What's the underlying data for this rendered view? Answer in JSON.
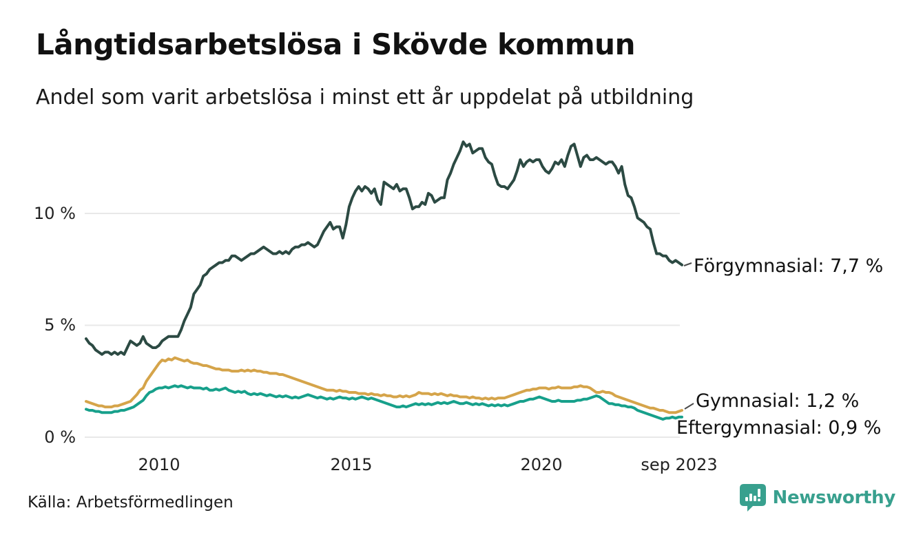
{
  "header": {
    "title": "Långtidsarbetslösa i Skövde kommun",
    "subtitle": "Andel som varit arbetslösa i minst ett år uppdelat på utbildning"
  },
  "footer": {
    "source": "Källa: Arbetsförmedlingen",
    "logo_text": "Newsworthy",
    "logo_color": "#38A08E"
  },
  "chart_data": {
    "type": "line",
    "title": "Långtidsarbetslösa i Skövde kommun",
    "subtitle": "Andel som varit arbetslösa i minst ett år uppdelat på utbildning",
    "unit": "%",
    "interval": "monthly",
    "x_start": "2008-01",
    "x_end": "2023-09",
    "point_count": 189,
    "grid": "horizontal",
    "ylim": [
      0,
      13.8
    ],
    "y_ticks": [
      {
        "value": 10,
        "label": "10 %"
      },
      {
        "value": 5,
        "label": "5 %"
      },
      {
        "value": 0,
        "label": "0 %"
      }
    ],
    "x_tick_labels": [
      "2010",
      "2015",
      "2020",
      "sep 2023"
    ],
    "x_tick_month_indices": [
      24,
      84,
      144,
      188
    ],
    "series": [
      {
        "name": "Förgymnasial",
        "end_label": "Förgymnasial: 7,7 %",
        "end_value": 7.7,
        "color": "#2C4A43",
        "values": [
          4.4,
          4.2,
          4.1,
          3.9,
          3.8,
          3.7,
          3.8,
          3.8,
          3.7,
          3.8,
          3.7,
          3.8,
          3.7,
          4.0,
          4.3,
          4.2,
          4.1,
          4.2,
          4.5,
          4.2,
          4.1,
          4.0,
          4.0,
          4.1,
          4.3,
          4.4,
          4.5,
          4.5,
          4.5,
          4.5,
          4.8,
          5.2,
          5.5,
          5.8,
          6.4,
          6.6,
          6.8,
          7.2,
          7.3,
          7.5,
          7.6,
          7.7,
          7.8,
          7.8,
          7.9,
          7.9,
          8.1,
          8.1,
          8.0,
          7.9,
          8.0,
          8.1,
          8.2,
          8.2,
          8.3,
          8.4,
          8.5,
          8.4,
          8.3,
          8.2,
          8.2,
          8.3,
          8.2,
          8.3,
          8.2,
          8.4,
          8.5,
          8.5,
          8.6,
          8.6,
          8.7,
          8.6,
          8.5,
          8.6,
          8.9,
          9.2,
          9.4,
          9.6,
          9.3,
          9.4,
          9.4,
          8.9,
          9.5,
          10.3,
          10.7,
          11.0,
          11.2,
          11.0,
          11.2,
          11.1,
          10.9,
          11.1,
          10.6,
          10.4,
          11.4,
          11.3,
          11.2,
          11.1,
          11.3,
          11.0,
          11.1,
          11.1,
          10.7,
          10.2,
          10.3,
          10.3,
          10.5,
          10.4,
          10.9,
          10.8,
          10.5,
          10.6,
          10.7,
          10.7,
          11.5,
          11.8,
          12.2,
          12.5,
          12.8,
          13.2,
          13.0,
          13.1,
          12.7,
          12.8,
          12.9,
          12.9,
          12.5,
          12.3,
          12.2,
          11.7,
          11.3,
          11.2,
          11.2,
          11.1,
          11.3,
          11.5,
          11.9,
          12.4,
          12.1,
          12.3,
          12.4,
          12.3,
          12.4,
          12.4,
          12.1,
          11.9,
          11.8,
          12.0,
          12.3,
          12.2,
          12.4,
          12.1,
          12.6,
          13.0,
          13.1,
          12.6,
          12.1,
          12.5,
          12.6,
          12.4,
          12.4,
          12.5,
          12.4,
          12.3,
          12.2,
          12.3,
          12.3,
          12.1,
          11.8,
          12.1,
          11.3,
          10.8,
          10.7,
          10.3,
          9.8,
          9.7,
          9.6,
          9.4,
          9.3,
          8.7,
          8.2,
          8.2,
          8.1,
          8.1,
          7.9,
          7.8,
          7.9,
          7.8,
          7.7
        ]
      },
      {
        "name": "Gymnasial",
        "end_label": "Gymnasial: 1,2 %",
        "end_value": 1.2,
        "color": "#D5A44A",
        "values": [
          1.6,
          1.55,
          1.5,
          1.45,
          1.4,
          1.4,
          1.35,
          1.35,
          1.35,
          1.4,
          1.4,
          1.45,
          1.5,
          1.55,
          1.6,
          1.75,
          1.9,
          2.1,
          2.2,
          2.5,
          2.7,
          2.9,
          3.1,
          3.3,
          3.45,
          3.4,
          3.5,
          3.45,
          3.55,
          3.5,
          3.45,
          3.4,
          3.45,
          3.35,
          3.3,
          3.3,
          3.25,
          3.2,
          3.2,
          3.15,
          3.1,
          3.05,
          3.05,
          3.0,
          3.0,
          3.0,
          2.95,
          2.95,
          2.95,
          3.0,
          2.95,
          3.0,
          2.95,
          3.0,
          2.95,
          2.95,
          2.9,
          2.9,
          2.85,
          2.85,
          2.85,
          2.8,
          2.8,
          2.75,
          2.7,
          2.65,
          2.6,
          2.55,
          2.5,
          2.45,
          2.4,
          2.35,
          2.3,
          2.25,
          2.2,
          2.15,
          2.1,
          2.1,
          2.1,
          2.05,
          2.1,
          2.05,
          2.05,
          2.0,
          2.0,
          2.0,
          1.95,
          1.95,
          1.95,
          1.9,
          1.95,
          1.9,
          1.9,
          1.85,
          1.9,
          1.85,
          1.85,
          1.8,
          1.8,
          1.85,
          1.8,
          1.85,
          1.8,
          1.85,
          1.9,
          2.0,
          1.95,
          1.95,
          1.95,
          1.9,
          1.95,
          1.9,
          1.95,
          1.9,
          1.85,
          1.9,
          1.85,
          1.85,
          1.8,
          1.8,
          1.8,
          1.75,
          1.8,
          1.75,
          1.75,
          1.7,
          1.75,
          1.7,
          1.75,
          1.7,
          1.75,
          1.75,
          1.75,
          1.8,
          1.85,
          1.9,
          1.95,
          2.0,
          2.05,
          2.1,
          2.1,
          2.15,
          2.15,
          2.2,
          2.2,
          2.2,
          2.15,
          2.2,
          2.2,
          2.25,
          2.2,
          2.2,
          2.2,
          2.2,
          2.25,
          2.25,
          2.3,
          2.25,
          2.25,
          2.2,
          2.1,
          2.0,
          2.0,
          2.05,
          2.0,
          2.0,
          1.95,
          1.85,
          1.8,
          1.75,
          1.7,
          1.65,
          1.6,
          1.55,
          1.5,
          1.45,
          1.4,
          1.35,
          1.3,
          1.3,
          1.25,
          1.2,
          1.2,
          1.15,
          1.1,
          1.1,
          1.1,
          1.15,
          1.2
        ]
      },
      {
        "name": "Eftergymnasial",
        "end_label": "Eftergymnasial: 0,9 %",
        "end_value": 0.9,
        "color": "#17A08B",
        "values": [
          1.25,
          1.2,
          1.2,
          1.15,
          1.15,
          1.1,
          1.1,
          1.1,
          1.1,
          1.15,
          1.15,
          1.2,
          1.2,
          1.25,
          1.3,
          1.35,
          1.45,
          1.55,
          1.65,
          1.85,
          2.0,
          2.05,
          2.15,
          2.2,
          2.2,
          2.25,
          2.2,
          2.25,
          2.3,
          2.25,
          2.3,
          2.25,
          2.2,
          2.25,
          2.2,
          2.2,
          2.2,
          2.15,
          2.2,
          2.1,
          2.1,
          2.15,
          2.1,
          2.15,
          2.2,
          2.1,
          2.05,
          2.0,
          2.05,
          2.0,
          2.05,
          1.95,
          1.9,
          1.95,
          1.9,
          1.95,
          1.9,
          1.85,
          1.9,
          1.85,
          1.8,
          1.85,
          1.8,
          1.85,
          1.8,
          1.75,
          1.8,
          1.75,
          1.8,
          1.85,
          1.9,
          1.85,
          1.8,
          1.75,
          1.8,
          1.75,
          1.7,
          1.75,
          1.7,
          1.75,
          1.8,
          1.75,
          1.75,
          1.7,
          1.75,
          1.7,
          1.75,
          1.8,
          1.75,
          1.7,
          1.75,
          1.7,
          1.65,
          1.6,
          1.55,
          1.5,
          1.45,
          1.4,
          1.35,
          1.35,
          1.4,
          1.35,
          1.4,
          1.45,
          1.5,
          1.45,
          1.5,
          1.45,
          1.5,
          1.45,
          1.5,
          1.55,
          1.5,
          1.55,
          1.5,
          1.55,
          1.6,
          1.55,
          1.5,
          1.5,
          1.55,
          1.5,
          1.45,
          1.5,
          1.45,
          1.5,
          1.45,
          1.4,
          1.45,
          1.4,
          1.45,
          1.4,
          1.45,
          1.4,
          1.45,
          1.5,
          1.55,
          1.6,
          1.6,
          1.65,
          1.7,
          1.7,
          1.75,
          1.8,
          1.75,
          1.7,
          1.65,
          1.6,
          1.6,
          1.65,
          1.6,
          1.6,
          1.6,
          1.6,
          1.6,
          1.65,
          1.65,
          1.7,
          1.7,
          1.75,
          1.8,
          1.85,
          1.8,
          1.7,
          1.6,
          1.5,
          1.5,
          1.45,
          1.45,
          1.4,
          1.4,
          1.35,
          1.35,
          1.3,
          1.2,
          1.15,
          1.1,
          1.05,
          1.0,
          0.95,
          0.9,
          0.85,
          0.8,
          0.85,
          0.85,
          0.9,
          0.85,
          0.9,
          0.9
        ]
      }
    ]
  }
}
